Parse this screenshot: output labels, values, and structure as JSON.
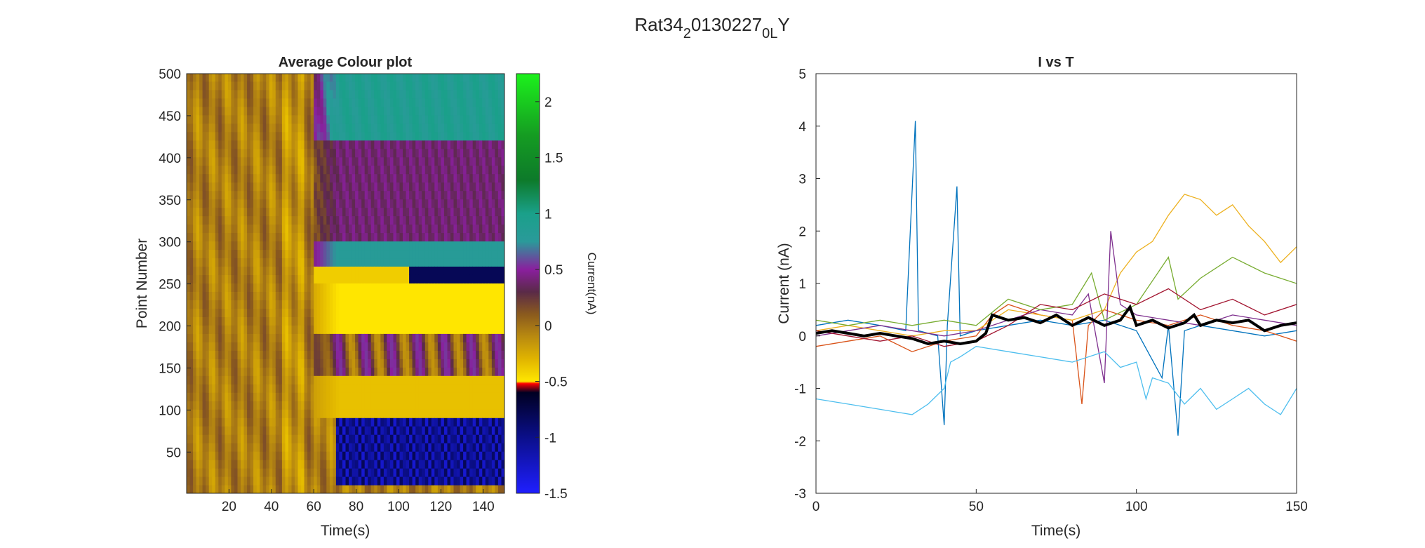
{
  "figure": {
    "title_main": "Rat34",
    "title_sub1": "2",
    "title_mid": "0130227",
    "title_sub2": "0L",
    "title_end": "Y"
  },
  "chart_data": [
    {
      "type": "heatmap",
      "title": "Average Colour plot",
      "xlabel": "Time(s)",
      "ylabel": "Point Number",
      "xlim": [
        0,
        150
      ],
      "ylim": [
        1,
        500
      ],
      "xticks": [
        20,
        40,
        60,
        80,
        100,
        120,
        140
      ],
      "yticks": [
        50,
        100,
        150,
        200,
        250,
        300,
        350,
        400,
        450,
        500
      ],
      "colorbar": {
        "label": "Current(nA)",
        "range": [
          -1.5,
          2.25
        ],
        "ticks": [
          -1.5,
          -1,
          -0.5,
          0,
          0.5,
          1,
          1.5,
          2
        ],
        "stops": [
          {
            "v": -1.5,
            "color": "#1f1fff"
          },
          {
            "v": -1.0,
            "color": "#0b0f8a"
          },
          {
            "v": -0.6,
            "color": "#000022"
          },
          {
            "v": -0.52,
            "color": "#ff0000"
          },
          {
            "v": -0.5,
            "color": "#ffe600"
          },
          {
            "v": -0.3,
            "color": "#e0b400"
          },
          {
            "v": -0.1,
            "color": "#b98a10"
          },
          {
            "v": 0.1,
            "color": "#8a5a1e"
          },
          {
            "v": 0.3,
            "color": "#5a2a48"
          },
          {
            "v": 0.5,
            "color": "#8a1f9e"
          },
          {
            "v": 0.75,
            "color": "#2a9a9a"
          },
          {
            "v": 1.0,
            "color": "#1aa08a"
          },
          {
            "v": 1.3,
            "color": "#0d7a2a"
          },
          {
            "v": 1.7,
            "color": "#159c22"
          },
          {
            "v": 2.25,
            "color": "#1cf11c"
          }
        ]
      }
    },
    {
      "type": "line",
      "title": "I vs T",
      "xlabel": "Time(s)",
      "ylabel": "Current (nA)",
      "xlim": [
        0,
        150
      ],
      "ylim": [
        -3,
        5
      ],
      "xticks": [
        0,
        50,
        100,
        150
      ],
      "yticks": [
        -3,
        -2,
        -1,
        0,
        1,
        2,
        3,
        4,
        5
      ],
      "series": [
        {
          "color": "#0072bd",
          "points": [
            [
              0,
              0.2
            ],
            [
              10,
              0.3
            ],
            [
              20,
              0.2
            ],
            [
              28,
              0.1
            ],
            [
              31,
              4.1
            ],
            [
              32,
              0.1
            ],
            [
              38,
              0.0
            ],
            [
              40,
              -1.7
            ],
            [
              41,
              0.2
            ],
            [
              44,
              2.85
            ],
            [
              45,
              0.0
            ],
            [
              50,
              0.1
            ],
            [
              60,
              0.2
            ],
            [
              70,
              0.3
            ],
            [
              80,
              0.2
            ],
            [
              90,
              0.3
            ],
            [
              100,
              0.1
            ],
            [
              108,
              -0.8
            ],
            [
              110,
              0.2
            ],
            [
              113,
              -1.9
            ],
            [
              115,
              0.1
            ],
            [
              120,
              0.2
            ],
            [
              130,
              0.1
            ],
            [
              140,
              0.0
            ],
            [
              150,
              0.1
            ]
          ]
        },
        {
          "color": "#d95319",
          "points": [
            [
              0,
              -0.2
            ],
            [
              10,
              -0.1
            ],
            [
              20,
              0.0
            ],
            [
              30,
              -0.3
            ],
            [
              40,
              -0.1
            ],
            [
              50,
              0.0
            ],
            [
              55,
              0.4
            ],
            [
              60,
              0.6
            ],
            [
              70,
              0.4
            ],
            [
              80,
              0.3
            ],
            [
              83,
              -1.3
            ],
            [
              85,
              0.2
            ],
            [
              90,
              0.5
            ],
            [
              100,
              0.3
            ],
            [
              110,
              0.2
            ],
            [
              120,
              0.4
            ],
            [
              130,
              0.2
            ],
            [
              140,
              0.1
            ],
            [
              150,
              -0.1
            ]
          ]
        },
        {
          "color": "#edb120",
          "points": [
            [
              0,
              0.1
            ],
            [
              10,
              0.2
            ],
            [
              20,
              0.1
            ],
            [
              30,
              0.0
            ],
            [
              40,
              0.1
            ],
            [
              50,
              0.1
            ],
            [
              60,
              0.5
            ],
            [
              70,
              0.4
            ],
            [
              80,
              0.3
            ],
            [
              90,
              0.5
            ],
            [
              95,
              1.2
            ],
            [
              100,
              1.6
            ],
            [
              105,
              1.8
            ],
            [
              110,
              2.3
            ],
            [
              115,
              2.7
            ],
            [
              120,
              2.6
            ],
            [
              125,
              2.3
            ],
            [
              130,
              2.5
            ],
            [
              135,
              2.1
            ],
            [
              140,
              1.8
            ],
            [
              145,
              1.4
            ],
            [
              150,
              1.7
            ]
          ]
        },
        {
          "color": "#7e2f8e",
          "points": [
            [
              0,
              0.0
            ],
            [
              10,
              0.1
            ],
            [
              20,
              0.2
            ],
            [
              30,
              0.1
            ],
            [
              40,
              0.0
            ],
            [
              50,
              0.1
            ],
            [
              60,
              0.3
            ],
            [
              70,
              0.5
            ],
            [
              80,
              0.4
            ],
            [
              85,
              0.8
            ],
            [
              90,
              -0.9
            ],
            [
              92,
              2.0
            ],
            [
              95,
              0.6
            ],
            [
              100,
              0.4
            ],
            [
              110,
              0.3
            ],
            [
              120,
              0.2
            ],
            [
              130,
              0.4
            ],
            [
              140,
              0.3
            ],
            [
              150,
              0.2
            ]
          ]
        },
        {
          "color": "#77ac30",
          "points": [
            [
              0,
              0.3
            ],
            [
              10,
              0.2
            ],
            [
              20,
              0.3
            ],
            [
              30,
              0.2
            ],
            [
              40,
              0.3
            ],
            [
              50,
              0.2
            ],
            [
              60,
              0.7
            ],
            [
              70,
              0.5
            ],
            [
              80,
              0.6
            ],
            [
              86,
              1.2
            ],
            [
              90,
              0.3
            ],
            [
              100,
              0.6
            ],
            [
              110,
              1.5
            ],
            [
              113,
              0.7
            ],
            [
              120,
              1.1
            ],
            [
              130,
              1.5
            ],
            [
              140,
              1.2
            ],
            [
              150,
              1.0
            ]
          ]
        },
        {
          "color": "#4dbeee",
          "points": [
            [
              0,
              -1.2
            ],
            [
              10,
              -1.3
            ],
            [
              20,
              -1.4
            ],
            [
              30,
              -1.5
            ],
            [
              35,
              -1.3
            ],
            [
              40,
              -1.0
            ],
            [
              42,
              -0.5
            ],
            [
              45,
              -0.4
            ],
            [
              50,
              -0.2
            ],
            [
              60,
              -0.3
            ],
            [
              70,
              -0.4
            ],
            [
              80,
              -0.5
            ],
            [
              90,
              -0.3
            ],
            [
              95,
              -0.6
            ],
            [
              100,
              -0.5
            ],
            [
              103,
              -1.2
            ],
            [
              105,
              -0.8
            ],
            [
              110,
              -0.9
            ],
            [
              115,
              -1.3
            ],
            [
              120,
              -1.0
            ],
            [
              125,
              -1.4
            ],
            [
              130,
              -1.2
            ],
            [
              135,
              -1.0
            ],
            [
              140,
              -1.3
            ],
            [
              145,
              -1.5
            ],
            [
              150,
              -1.0
            ]
          ]
        },
        {
          "color": "#a2142f",
          "points": [
            [
              0,
              0.1
            ],
            [
              10,
              0.0
            ],
            [
              20,
              -0.1
            ],
            [
              30,
              0.0
            ],
            [
              40,
              -0.2
            ],
            [
              50,
              -0.1
            ],
            [
              60,
              0.2
            ],
            [
              70,
              0.6
            ],
            [
              80,
              0.5
            ],
            [
              90,
              0.8
            ],
            [
              100,
              0.6
            ],
            [
              110,
              0.9
            ],
            [
              120,
              0.5
            ],
            [
              130,
              0.7
            ],
            [
              140,
              0.4
            ],
            [
              150,
              0.6
            ]
          ]
        }
      ],
      "mean_series": {
        "color": "#000000",
        "points": [
          [
            0,
            0.05
          ],
          [
            5,
            0.1
          ],
          [
            10,
            0.05
          ],
          [
            15,
            0.0
          ],
          [
            20,
            0.05
          ],
          [
            25,
            0.0
          ],
          [
            30,
            -0.05
          ],
          [
            35,
            -0.15
          ],
          [
            40,
            -0.1
          ],
          [
            45,
            -0.15
          ],
          [
            50,
            -0.1
          ],
          [
            53,
            0.05
          ],
          [
            55,
            0.4
          ],
          [
            60,
            0.3
          ],
          [
            65,
            0.35
          ],
          [
            70,
            0.25
          ],
          [
            75,
            0.4
          ],
          [
            80,
            0.2
          ],
          [
            85,
            0.35
          ],
          [
            90,
            0.2
          ],
          [
            95,
            0.3
          ],
          [
            98,
            0.55
          ],
          [
            100,
            0.2
          ],
          [
            105,
            0.3
          ],
          [
            110,
            0.15
          ],
          [
            115,
            0.25
          ],
          [
            118,
            0.4
          ],
          [
            120,
            0.2
          ],
          [
            125,
            0.3
          ],
          [
            130,
            0.25
          ],
          [
            135,
            0.3
          ],
          [
            140,
            0.1
          ],
          [
            145,
            0.2
          ],
          [
            150,
            0.25
          ]
        ]
      }
    }
  ]
}
